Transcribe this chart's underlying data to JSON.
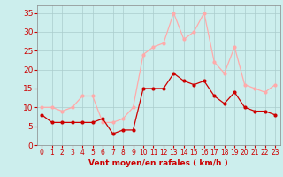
{
  "hours": [
    0,
    1,
    2,
    3,
    4,
    5,
    6,
    7,
    8,
    9,
    10,
    11,
    12,
    13,
    14,
    15,
    16,
    17,
    18,
    19,
    20,
    21,
    22,
    23
  ],
  "wind_avg": [
    8,
    6,
    6,
    6,
    6,
    6,
    7,
    3,
    4,
    4,
    15,
    15,
    15,
    19,
    17,
    16,
    17,
    13,
    11,
    14,
    10,
    9,
    9,
    8
  ],
  "wind_gust": [
    10,
    10,
    9,
    10,
    13,
    13,
    6,
    6,
    7,
    10,
    24,
    26,
    27,
    35,
    28,
    30,
    35,
    22,
    19,
    26,
    16,
    15,
    14,
    16
  ],
  "avg_color": "#cc0000",
  "gust_color": "#ffaaaa",
  "bg_color": "#cceeed",
  "grid_color": "#aacccc",
  "xlabel": "Vent moyen/en rafales ( km/h )",
  "xlabel_color": "#cc0000",
  "tick_color": "#cc0000",
  "ylim": [
    0,
    37
  ],
  "yticks": [
    0,
    5,
    10,
    15,
    20,
    25,
    30,
    35
  ]
}
